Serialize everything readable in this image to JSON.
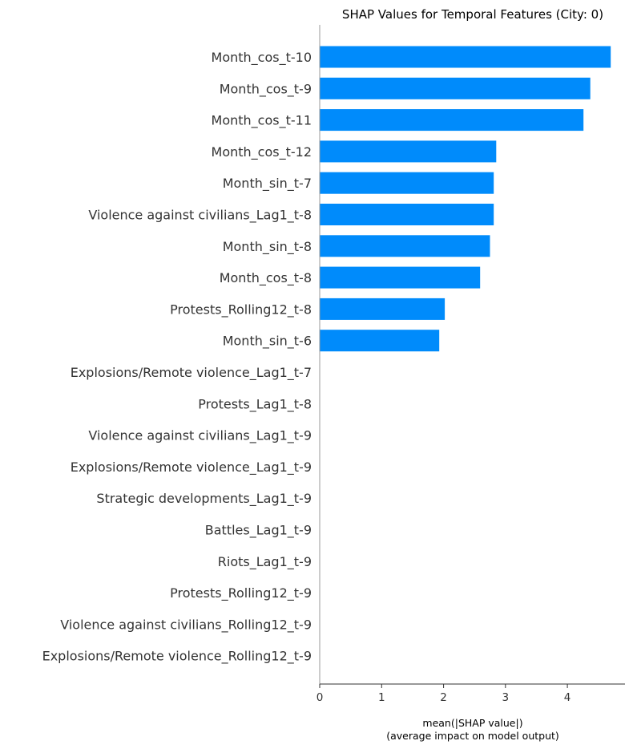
{
  "chart_data": {
    "type": "bar",
    "orientation": "horizontal",
    "title": "SHAP Values for Temporal Features (City: 0)",
    "xlabel_lines": [
      "mean(|SHAP value|)",
      "(average impact on model output)"
    ],
    "categories": [
      "Month_cos_t-10",
      "Month_cos_t-9",
      "Month_cos_t-11",
      "Month_cos_t-12",
      "Month_sin_t-7",
      "Violence against civilians_Lag1_t-8",
      "Month_sin_t-8",
      "Month_cos_t-8",
      "Protests_Rolling12_t-8",
      "Month_sin_t-6",
      "Explosions/Remote violence_Lag1_t-7",
      "Protests_Lag1_t-8",
      "Violence against civilians_Lag1_t-9",
      "Explosions/Remote violence_Lag1_t-9",
      "Strategic developments_Lag1_t-9",
      "Battles_Lag1_t-9",
      "Riots_Lag1_t-9",
      "Protests_Rolling12_t-9",
      "Violence against civilians_Rolling12_t-9",
      "Explosions/Remote violence_Rolling12_t-9"
    ],
    "values": [
      4.7,
      4.37,
      4.26,
      2.85,
      2.81,
      2.81,
      2.75,
      2.59,
      2.02,
      1.93,
      0,
      0,
      0,
      0,
      0,
      0,
      0,
      0,
      0,
      0
    ],
    "xlim": [
      0,
      4.93
    ],
    "xticks": [
      0,
      1,
      2,
      3,
      4
    ],
    "bar_color": "#008bfb",
    "grid": false,
    "legend": "none"
  }
}
